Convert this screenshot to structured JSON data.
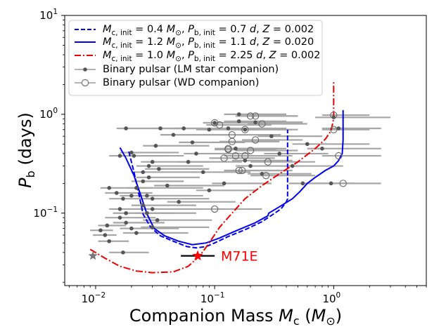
{
  "chart_data": {
    "type": "scatter",
    "xlabel": "Companion Mass M_c (M_⊙)",
    "ylabel": "P_b (days)",
    "xscale": "log",
    "yscale": "log",
    "xlim": [
      0.0055,
      6.0
    ],
    "ylim": [
      0.0185,
      10
    ],
    "x_ticks": [
      {
        "value": 0.01,
        "base": "10",
        "exp": "−2"
      },
      {
        "value": 0.1,
        "base": "10",
        "exp": "−1"
      },
      {
        "value": 1,
        "base": "10",
        "exp": "0"
      }
    ],
    "y_ticks": [
      {
        "value": 0.1,
        "base": "10",
        "exp": "−1"
      },
      {
        "value": 1,
        "base": "10",
        "exp": "0"
      },
      {
        "value": 10,
        "base": "10",
        "exp": "1"
      }
    ],
    "legend": {
      "placement": "top-left",
      "entries": [
        {
          "id": "track1",
          "text": "M_c, init = 0.4 M_⊙, P_b, init = 0.7 d, Z = 0.002"
        },
        {
          "id": "track2",
          "text": "M_c, init = 1.2 M_⊙, P_b, init = 1.1 d, Z = 0.020"
        },
        {
          "id": "track3",
          "text": "M_c, init = 1.0 M_⊙, P_b, init = 2.25 d, Z = 0.002"
        },
        {
          "id": "lm",
          "text": "Binary pulsar (LM star companion)"
        },
        {
          "id": "wd",
          "text": "Binary pulsar (WD companion)"
        }
      ]
    },
    "legend_math": {
      "Mc_init": {
        "sym": "M",
        "sub": "c, init"
      },
      "Pb_init": {
        "sym": "P",
        "sub": "b, init"
      },
      "Z": "Z",
      "Msun": "M",
      "d": "d",
      "values": [
        {
          "m": "0.4",
          "p": "0.7",
          "z": "0.002"
        },
        {
          "m": "1.2",
          "p": "1.1",
          "z": "0.020"
        },
        {
          "m": "1.0",
          "p": "2.25",
          "z": "0.002"
        }
      ]
    },
    "annotation": {
      "text": "M71E",
      "x": 0.072,
      "y": 0.037,
      "xerr": [
        0.052,
        0.1
      ],
      "color": "#ff0000"
    },
    "gray_star": {
      "x": 0.0095,
      "y": 0.037
    },
    "series": [
      {
        "name": "M_c, init = 0.4 M_⊙, P_b, init = 0.7 d, Z = 0.002",
        "style": "dashed",
        "color": "#0000ee",
        "points": [
          [
            0.019,
            0.42
          ],
          [
            0.021,
            0.26
          ],
          [
            0.023,
            0.16
          ],
          [
            0.025,
            0.098
          ],
          [
            0.029,
            0.072
          ],
          [
            0.035,
            0.059
          ],
          [
            0.045,
            0.052
          ],
          [
            0.058,
            0.046
          ],
          [
            0.07,
            0.0445
          ],
          [
            0.085,
            0.046
          ],
          [
            0.1,
            0.05
          ],
          [
            0.13,
            0.058
          ],
          [
            0.18,
            0.068
          ],
          [
            0.25,
            0.082
          ],
          [
            0.3,
            0.095
          ],
          [
            0.36,
            0.11
          ],
          [
            0.4,
            0.13
          ],
          [
            0.41,
            0.14
          ],
          [
            0.41,
            0.7
          ]
        ]
      },
      {
        "name": "M_c, init = 1.2 M_⊙, P_b, init = 1.1 d, Z = 0.020",
        "style": "solid",
        "color": "#0000ee",
        "points": [
          [
            0.016,
            0.46
          ],
          [
            0.018,
            0.36
          ],
          [
            0.021,
            0.24
          ],
          [
            0.024,
            0.15
          ],
          [
            0.027,
            0.098
          ],
          [
            0.031,
            0.07
          ],
          [
            0.038,
            0.059
          ],
          [
            0.05,
            0.052
          ],
          [
            0.065,
            0.048
          ],
          [
            0.085,
            0.05
          ],
          [
            0.11,
            0.056
          ],
          [
            0.15,
            0.066
          ],
          [
            0.22,
            0.08
          ],
          [
            0.28,
            0.094
          ],
          [
            0.285,
            0.1
          ],
          [
            0.35,
            0.116
          ],
          [
            0.45,
            0.14
          ],
          [
            0.52,
            0.165
          ],
          [
            0.6,
            0.2
          ],
          [
            0.7,
            0.23
          ],
          [
            0.85,
            0.27
          ],
          [
            1.0,
            0.3
          ],
          [
            1.1,
            0.34
          ],
          [
            1.18,
            0.4
          ],
          [
            1.2,
            0.55
          ],
          [
            1.2,
            1.1
          ]
        ]
      },
      {
        "name": "M_c, init = 1.0 M_⊙, P_b, init = 2.25 d, Z = 0.002",
        "style": "dashdot",
        "color": "#ee0000",
        "points": [
          [
            0.009,
            0.043
          ],
          [
            0.012,
            0.035
          ],
          [
            0.016,
            0.029
          ],
          [
            0.022,
            0.026
          ],
          [
            0.03,
            0.025
          ],
          [
            0.045,
            0.0255
          ],
          [
            0.06,
            0.029
          ],
          [
            0.075,
            0.037
          ],
          [
            0.09,
            0.05
          ],
          [
            0.11,
            0.072
          ],
          [
            0.14,
            0.1
          ],
          [
            0.18,
            0.14
          ],
          [
            0.25,
            0.19
          ],
          [
            0.35,
            0.25
          ],
          [
            0.5,
            0.33
          ],
          [
            0.7,
            0.45
          ],
          [
            0.85,
            0.56
          ],
          [
            0.95,
            0.68
          ],
          [
            1.0,
            0.9
          ],
          [
            1.0,
            1.3
          ],
          [
            1.0,
            2.2
          ]
        ]
      },
      {
        "name": "Binary pulsar (LM star companion)",
        "color": "#666666",
        "points": [
          [
            0.0125,
            0.075,
            0.0105,
            0.018
          ],
          [
            0.012,
            0.06,
            0.0095,
            0.015
          ],
          [
            0.011,
            0.067,
            0.009,
            0.014
          ],
          [
            0.013,
            0.052,
            0.0105,
            0.019
          ],
          [
            0.013,
            0.18,
            0.011,
            0.03
          ],
          [
            0.015,
            0.16,
            0.012,
            0.03
          ],
          [
            0.017,
            0.14,
            0.013,
            0.035
          ],
          [
            0.017,
            0.04,
            0.013,
            0.028
          ],
          [
            0.02,
            0.41,
            0.016,
            0.05
          ],
          [
            0.021,
            0.38,
            0.016,
            0.055
          ],
          [
            0.016,
            0.38,
            0.013,
            0.04
          ],
          [
            0.016,
            0.11,
            0.013,
            0.035
          ],
          [
            0.016,
            0.09,
            0.012,
            0.032
          ],
          [
            0.02,
            0.15,
            0.016,
            0.06
          ],
          [
            0.022,
            0.18,
            0.018,
            0.08
          ],
          [
            0.018,
            0.1,
            0.014,
            0.045
          ],
          [
            0.018,
            0.08,
            0.014,
            0.038
          ],
          [
            0.02,
            0.07,
            0.016,
            0.05
          ],
          [
            0.022,
            0.063,
            0.017,
            0.06
          ],
          [
            0.025,
            0.26,
            0.02,
            0.07
          ],
          [
            0.025,
            0.21,
            0.02,
            0.055
          ],
          [
            0.025,
            0.12,
            0.02,
            0.07
          ],
          [
            0.027,
            0.15,
            0.022,
            0.08
          ],
          [
            0.027,
            0.1,
            0.022,
            0.07
          ],
          [
            0.03,
            0.14,
            0.024,
            0.09
          ],
          [
            0.03,
            0.11,
            0.023,
            0.08
          ],
          [
            0.03,
            0.33,
            0.024,
            0.09
          ],
          [
            0.028,
            0.3,
            0.022,
            0.08
          ],
          [
            0.028,
            0.23,
            0.022,
            0.075
          ],
          [
            0.018,
            0.72,
            0.015,
            0.06
          ],
          [
            0.033,
            0.085,
            0.025,
            0.095
          ],
          [
            0.03,
            0.072,
            0.024,
            0.09
          ],
          [
            0.035,
            0.72,
            0.03,
            0.075
          ],
          [
            0.034,
            0.28,
            0.026,
            0.09
          ],
          [
            0.032,
            0.48,
            0.025,
            0.09
          ],
          [
            0.04,
            0.19,
            0.031,
            0.12
          ],
          [
            0.045,
            0.62,
            0.035,
            0.13
          ],
          [
            0.05,
            0.13,
            0.04,
            0.15
          ],
          [
            0.055,
            0.72,
            0.045,
            0.15
          ],
          [
            0.06,
            0.33,
            0.048,
            0.17
          ],
          [
            0.065,
            0.52,
            0.05,
            0.18
          ],
          [
            0.07,
            0.4,
            0.055,
            0.2
          ],
          [
            0.08,
            0.26,
            0.063,
            0.2
          ],
          [
            0.09,
            0.17,
            0.07,
            0.22
          ],
          [
            0.09,
            0.7,
            0.07,
            0.23
          ],
          [
            0.1,
            0.82,
            0.08,
            0.27
          ],
          [
            0.12,
            0.2,
            0.095,
            0.3
          ],
          [
            0.13,
            0.72,
            0.1,
            0.4
          ],
          [
            0.15,
            0.45,
            0.12,
            0.4
          ],
          [
            0.18,
            0.7,
            0.14,
            0.5
          ],
          [
            0.18,
            0.34,
            0.14,
            0.45
          ],
          [
            0.2,
            0.3,
            0.15,
            0.5
          ],
          [
            0.22,
            0.83,
            0.18,
            0.55
          ],
          [
            0.25,
            0.25,
            0.19,
            0.65
          ],
          [
            0.3,
            0.6,
            0.23,
            0.8
          ],
          [
            0.35,
            0.4,
            0.26,
            0.9
          ],
          [
            0.45,
            0.3,
            0.35,
            1.2
          ],
          [
            0.55,
            0.2,
            0.42,
            1.5
          ],
          [
            0.6,
            0.5,
            0.45,
            2.0
          ],
          [
            0.8,
            0.45,
            0.6,
            2.5
          ],
          [
            0.95,
            0.2,
            0.7,
            1.5
          ],
          [
            1.0,
            0.93,
            0.7,
            3.0
          ],
          [
            1.1,
            0.72,
            0.8,
            2.5
          ],
          [
            0.16,
            1.0,
            0.12,
            0.4
          ],
          [
            0.16,
            0.85,
            0.12,
            0.4
          ]
        ]
      },
      {
        "name": "Binary pulsar (WD companion)",
        "color": "#666666",
        "points": [
          [
            0.1,
            0.82,
            0.08,
            0.3
          ],
          [
            0.11,
            0.78,
            0.085,
            0.3
          ],
          [
            0.14,
            0.62,
            0.11,
            0.36
          ],
          [
            0.14,
            0.53,
            0.11,
            0.35
          ],
          [
            0.13,
            0.44,
            0.1,
            0.33
          ],
          [
            0.12,
            0.36,
            0.09,
            0.32
          ],
          [
            0.13,
            0.45,
            0.1,
            0.34
          ],
          [
            0.15,
            0.38,
            0.12,
            0.38
          ],
          [
            0.16,
            0.27,
            0.12,
            0.4
          ],
          [
            0.18,
            0.38,
            0.14,
            0.45
          ],
          [
            0.18,
            0.7,
            0.14,
            0.45
          ],
          [
            0.2,
            0.43,
            0.15,
            0.5
          ],
          [
            0.2,
            0.96,
            0.15,
            0.5
          ],
          [
            0.22,
            0.55,
            0.17,
            0.55
          ],
          [
            0.22,
            0.96,
            0.17,
            0.5
          ],
          [
            0.25,
            0.8,
            0.19,
            0.6
          ],
          [
            0.28,
            0.33,
            0.2,
            0.7
          ],
          [
            0.1,
            0.11,
            0.08,
            0.25
          ],
          [
            0.27,
            0.24,
            0.2,
            0.7
          ],
          [
            1.0,
            0.7,
            0.8,
            2.0
          ],
          [
            1.0,
            0.98,
            0.8,
            2.0
          ],
          [
            1.1,
            0.38,
            0.8,
            2.5
          ],
          [
            1.2,
            0.2,
            0.9,
            2.5
          ],
          [
            0.17,
            0.27,
            0.12,
            0.45
          ]
        ]
      }
    ]
  }
}
